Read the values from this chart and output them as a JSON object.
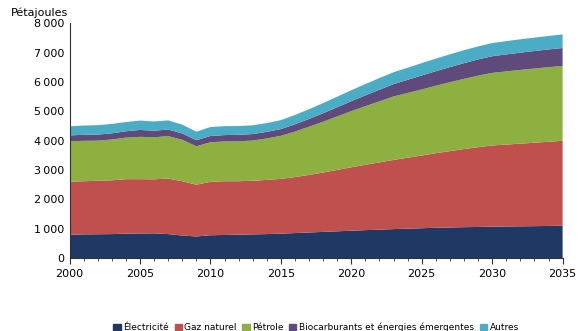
{
  "years": [
    2000,
    2001,
    2002,
    2003,
    2004,
    2005,
    2006,
    2007,
    2008,
    2009,
    2010,
    2011,
    2012,
    2013,
    2014,
    2015,
    2016,
    2017,
    2018,
    2019,
    2020,
    2021,
    2022,
    2023,
    2024,
    2025,
    2026,
    2027,
    2028,
    2029,
    2030,
    2031,
    2032,
    2033,
    2034,
    2035
  ],
  "electricite": [
    800,
    810,
    815,
    820,
    835,
    840,
    845,
    820,
    770,
    740,
    780,
    790,
    800,
    810,
    820,
    835,
    855,
    875,
    895,
    915,
    935,
    955,
    970,
    990,
    1005,
    1020,
    1035,
    1045,
    1055,
    1063,
    1072,
    1078,
    1085,
    1090,
    1098,
    1105
  ],
  "gaz_naturel": [
    1800,
    1810,
    1820,
    1830,
    1855,
    1850,
    1840,
    1890,
    1850,
    1760,
    1820,
    1830,
    1820,
    1825,
    1845,
    1865,
    1905,
    1960,
    2020,
    2090,
    2160,
    2225,
    2290,
    2355,
    2415,
    2475,
    2540,
    2600,
    2660,
    2715,
    2765,
    2790,
    2815,
    2840,
    2865,
    2890
  ],
  "petrole": [
    1380,
    1375,
    1365,
    1390,
    1415,
    1440,
    1430,
    1445,
    1410,
    1310,
    1345,
    1355,
    1360,
    1370,
    1410,
    1465,
    1550,
    1640,
    1730,
    1820,
    1910,
    1995,
    2080,
    2160,
    2205,
    2250,
    2295,
    2345,
    2390,
    2435,
    2470,
    2490,
    2508,
    2525,
    2538,
    2550
  ],
  "biocarburants": [
    200,
    205,
    208,
    210,
    215,
    235,
    225,
    225,
    215,
    205,
    215,
    215,
    220,
    220,
    225,
    230,
    245,
    265,
    290,
    315,
    340,
    368,
    395,
    420,
    448,
    475,
    495,
    515,
    535,
    552,
    568,
    578,
    588,
    597,
    604,
    610
  ],
  "autres": [
    310,
    315,
    320,
    320,
    315,
    320,
    315,
    310,
    300,
    290,
    305,
    305,
    298,
    298,
    298,
    305,
    320,
    330,
    345,
    358,
    372,
    385,
    397,
    405,
    412,
    420,
    428,
    435,
    440,
    444,
    448,
    452,
    455,
    457,
    459,
    462
  ],
  "colors": {
    "electricite": "#1f3864",
    "gaz_naturel": "#c0504d",
    "petrole": "#8db040",
    "biocarburants": "#604a7b",
    "autres": "#4bacc6"
  },
  "legend_labels": [
    "Électricité",
    "Gaz naturel",
    "Pétrole",
    "Biocarburants et énergies émergentes",
    "Autres"
  ],
  "ylabel": "Pétajoules",
  "ylim": [
    0,
    8000
  ],
  "yticks": [
    0,
    1000,
    2000,
    3000,
    4000,
    5000,
    6000,
    7000,
    8000
  ],
  "xlim": [
    2000,
    2035
  ],
  "xticks": [
    2000,
    2005,
    2010,
    2015,
    2020,
    2025,
    2030,
    2035
  ],
  "background_color": "#ffffff"
}
